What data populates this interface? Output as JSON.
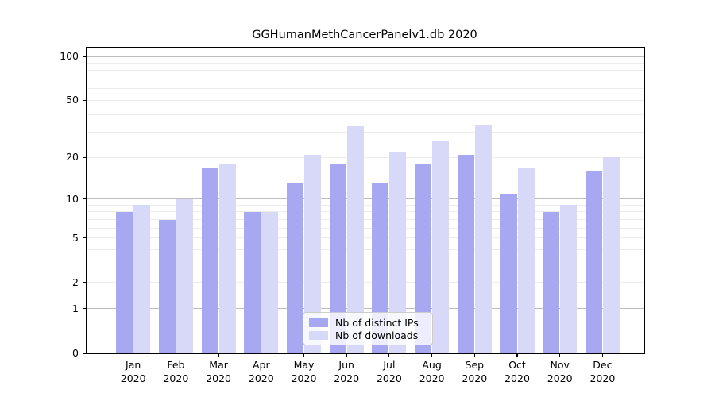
{
  "chart_data": {
    "type": "bar",
    "title": "GGHumanMethCancerPanelv1.db 2020",
    "categories": [
      "Jan",
      "Feb",
      "Mar",
      "Apr",
      "May",
      "Jun",
      "Jul",
      "Aug",
      "Sep",
      "Oct",
      "Nov",
      "Dec"
    ],
    "year_label": "2020",
    "series": [
      {
        "name": "Nb of distinct IPs",
        "color": "#a7a7f2",
        "values": [
          8,
          7,
          17,
          8,
          13,
          18,
          13,
          18,
          21,
          11,
          8,
          16
        ]
      },
      {
        "name": "Nb of downloads",
        "color": "#d8d8f8",
        "values": [
          9,
          10,
          18,
          8,
          21,
          33,
          22,
          26,
          34,
          17,
          9,
          20
        ]
      }
    ],
    "yticks": [
      100,
      50,
      20,
      10,
      5,
      2,
      1,
      0
    ],
    "grid": {
      "major_values": [
        1,
        10,
        100
      ],
      "minor_values": [
        2,
        3,
        4,
        5,
        6,
        7,
        8,
        9,
        20,
        30,
        40,
        50,
        60,
        70,
        80,
        90
      ],
      "major_color": "#bdbdbd",
      "minor_color": "#ececec"
    },
    "scale": "log10(1+y)",
    "ylim": [
      0,
      114
    ],
    "xlabel": "",
    "ylabel": "",
    "legend_position": "lower-center",
    "background_color": "#ffffff",
    "text_color": "#000000"
  }
}
